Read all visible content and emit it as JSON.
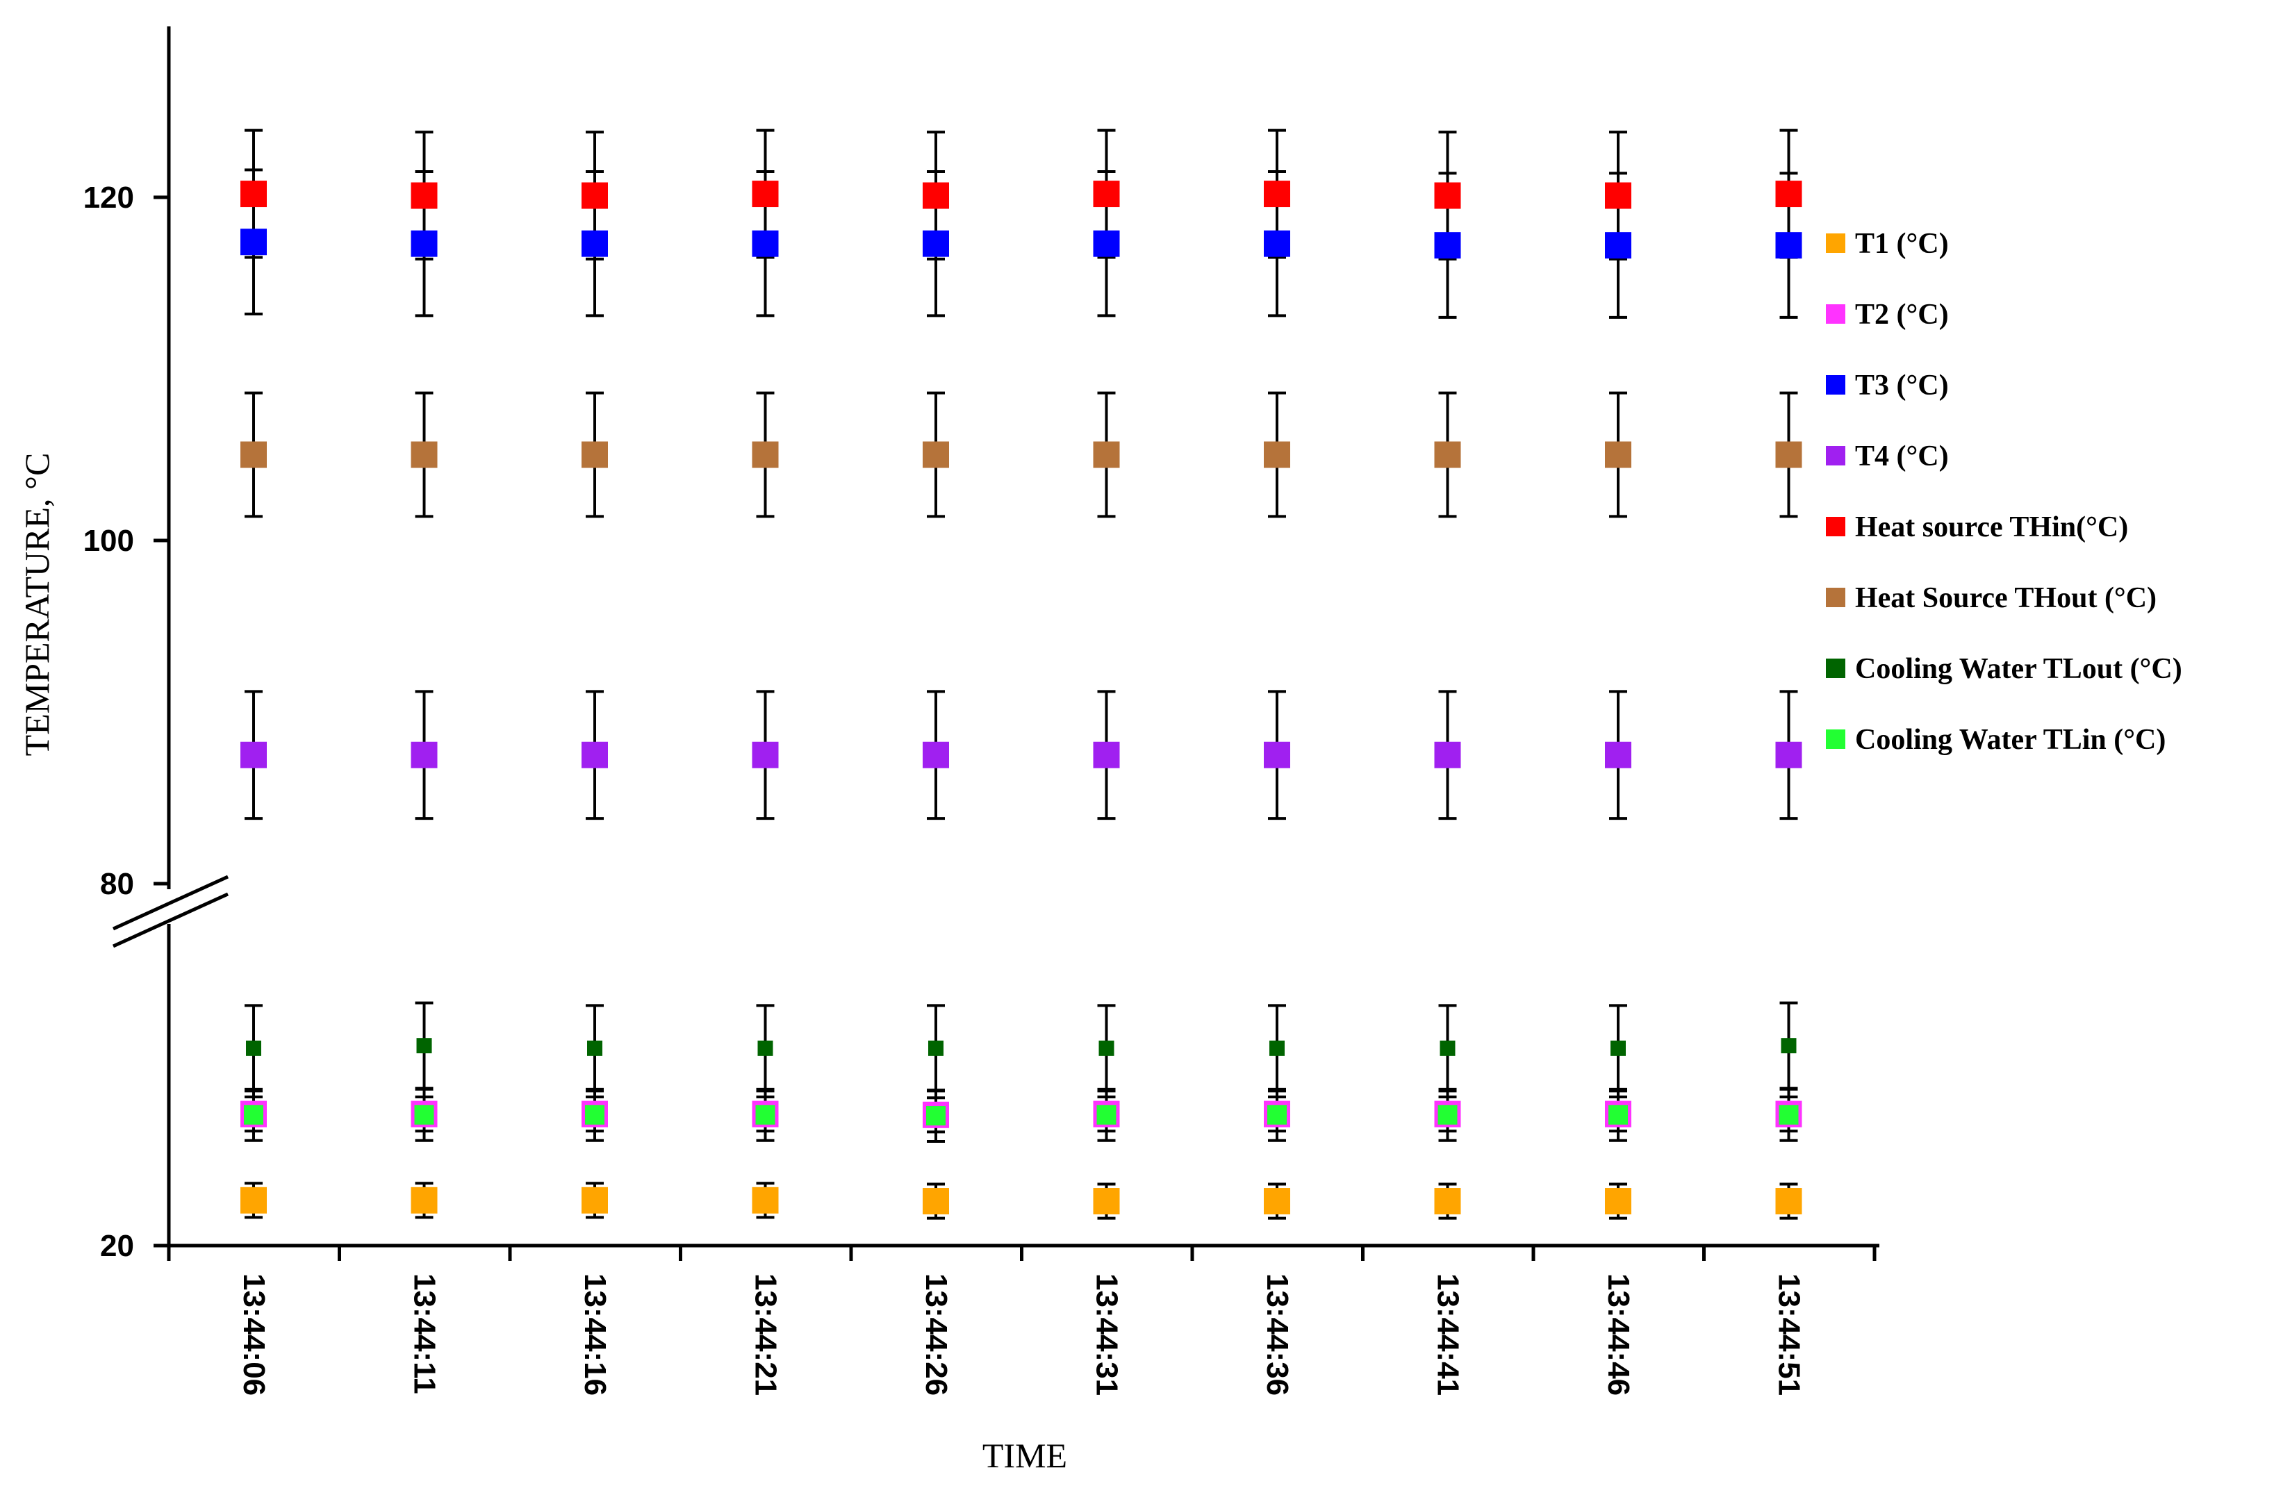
{
  "chart_data": {
    "type": "scatter",
    "title": "",
    "xlabel": "TIME",
    "ylabel": "TEMPERATURE, °C",
    "ylim": [
      20,
      130
    ],
    "y_break": {
      "lower_top": 60,
      "upper_bottom": 80
    },
    "yticks": [
      "20",
      "80",
      "100",
      "120"
    ],
    "categories": [
      "13:44:06",
      "13:44:11",
      "13:44:16",
      "13:44:21",
      "13:44:26",
      "13:44:31",
      "13:44:36",
      "13:44:41",
      "13:44:46",
      "13:44:51"
    ],
    "series": [
      {
        "name": "T1 (°C)",
        "color": "#FFA500",
        "size": "large",
        "error": 2.0,
        "values": [
          25.3,
          25.3,
          25.3,
          25.3,
          25.2,
          25.2,
          25.2,
          25.2,
          25.2,
          25.2
        ]
      },
      {
        "name": "T2 (°C)",
        "color": "#FF33FF",
        "size": "large",
        "error": 2.0,
        "values": [
          35.4,
          35.4,
          35.4,
          35.4,
          35.3,
          35.4,
          35.4,
          35.4,
          35.4,
          35.4
        ]
      },
      {
        "name": "T3 (°C)",
        "color": "#0000FF",
        "size": "large",
        "error": 4.2,
        "values": [
          117.4,
          117.3,
          117.3,
          117.3,
          117.3,
          117.3,
          117.3,
          117.2,
          117.2,
          117.2
        ]
      },
      {
        "name": "T4 (°C)",
        "color": "#A020F0",
        "size": "large",
        "error": 3.7,
        "values": [
          87.5,
          87.5,
          87.5,
          87.5,
          87.5,
          87.5,
          87.5,
          87.5,
          87.5,
          87.5
        ]
      },
      {
        "name": "Heat source THin(°C)",
        "color": "#FF0000",
        "size": "large",
        "error": 3.7,
        "values": [
          120.2,
          120.1,
          120.1,
          120.2,
          120.1,
          120.2,
          120.2,
          120.1,
          120.1,
          120.2
        ]
      },
      {
        "name": "Heat Source THout (°C)",
        "color": "#B5733A",
        "size": "large",
        "error": 3.6,
        "values": [
          105.0,
          105.0,
          105.0,
          105.0,
          105.0,
          105.0,
          105.0,
          105.0,
          105.0,
          105.0
        ]
      },
      {
        "name": "Cooling Water TLout (°C)",
        "color": "#006400",
        "size": "small",
        "error": 5.0,
        "values": [
          43.1,
          43.4,
          43.1,
          43.1,
          43.1,
          43.1,
          43.1,
          43.1,
          43.1,
          43.4
        ]
      },
      {
        "name": "Cooling Water TLin (°C)",
        "color": "#22FF33",
        "size": "medium",
        "error": 3.0,
        "values": [
          35.3,
          35.3,
          35.3,
          35.3,
          35.2,
          35.3,
          35.3,
          35.3,
          35.3,
          35.3
        ]
      }
    ],
    "legend_position": "right"
  }
}
